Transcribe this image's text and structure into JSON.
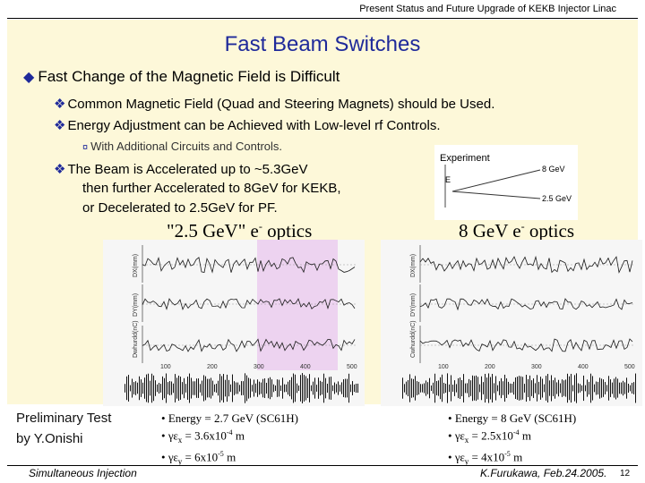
{
  "header": "Present Status and Future Upgrade of KEKB Injector Linac",
  "title": "Fast Beam Switches",
  "bullet1": "Fast Change of the Magnetic Field is Difficult",
  "sub1": "Common Magnetic Field (Quad and Steering Magnets) should be Used.",
  "sub2": "Energy Adjustment can be Achieved with Low-level rf Controls.",
  "sub2a": "With Additional Circuits and Controls.",
  "sub3": "The Beam is Accelerated up to ~5.3GeV",
  "sub3_line2": "then further Accelerated to 8GeV for KEKB,",
  "sub3_line3": "or Decelerated to 2.5GeV for PF.",
  "figure": {
    "label_experiment": "Experiment",
    "label_e": "E",
    "label_8": "8 GeV",
    "label_25": "2.5 GeV"
  },
  "optics_left": {
    "pre": "\"2.5 GeV\" e",
    "sup": "-",
    "post": " optics"
  },
  "optics_right": {
    "pre": "8 GeV e",
    "sup": "-",
    "post": " optics"
  },
  "caption_left": {
    "energy": "Energy = 2.7 GeV (SC61H)",
    "ex_pre": "γε",
    "ex_sub": "x",
    "ex_val": " = 3.6x10",
    "ex_exp": "-4",
    "ex_unit": " m",
    "ey_pre": "γε",
    "ey_sub": "y",
    "ey_val": " = 6x10",
    "ey_exp": "-5",
    "ey_unit": " m"
  },
  "caption_right": {
    "energy": "Energy = 8 GeV (SC61H)",
    "ex_pre": "γε",
    "ex_sub": "x",
    "ex_val": " = 2.5x10",
    "ex_exp": "-4",
    "ex_unit": " m",
    "ey_pre": "γε",
    "ey_sub": "y",
    "ey_val": " = 4x10",
    "ey_exp": "-5",
    "ey_unit": " m"
  },
  "preliminary": [
    "Preliminary Test",
    "by Y.Onishi"
  ],
  "footer_left": "Simultaneous Injection",
  "footer_right": "K.Furukawa, Feb.24.2005.",
  "page_number": "12",
  "plot_axis_labels_left": [
    "DX(mm)",
    "DY(mm)",
    "Dwhurdd(nC)"
  ],
  "plot_axis_labels_right": [
    "DX(mm)",
    "DY(mm)",
    "Cwhurdd(nC)"
  ],
  "plot_tick_left": [
    "100",
    "200",
    "300",
    "400",
    "500"
  ],
  "plot_tick_right": [
    "100",
    "200",
    "300",
    "400",
    "500"
  ],
  "colors": {
    "accent": "#1f2a9a",
    "panel": "#fdf8d9",
    "highlight": "#e9c4ee"
  }
}
